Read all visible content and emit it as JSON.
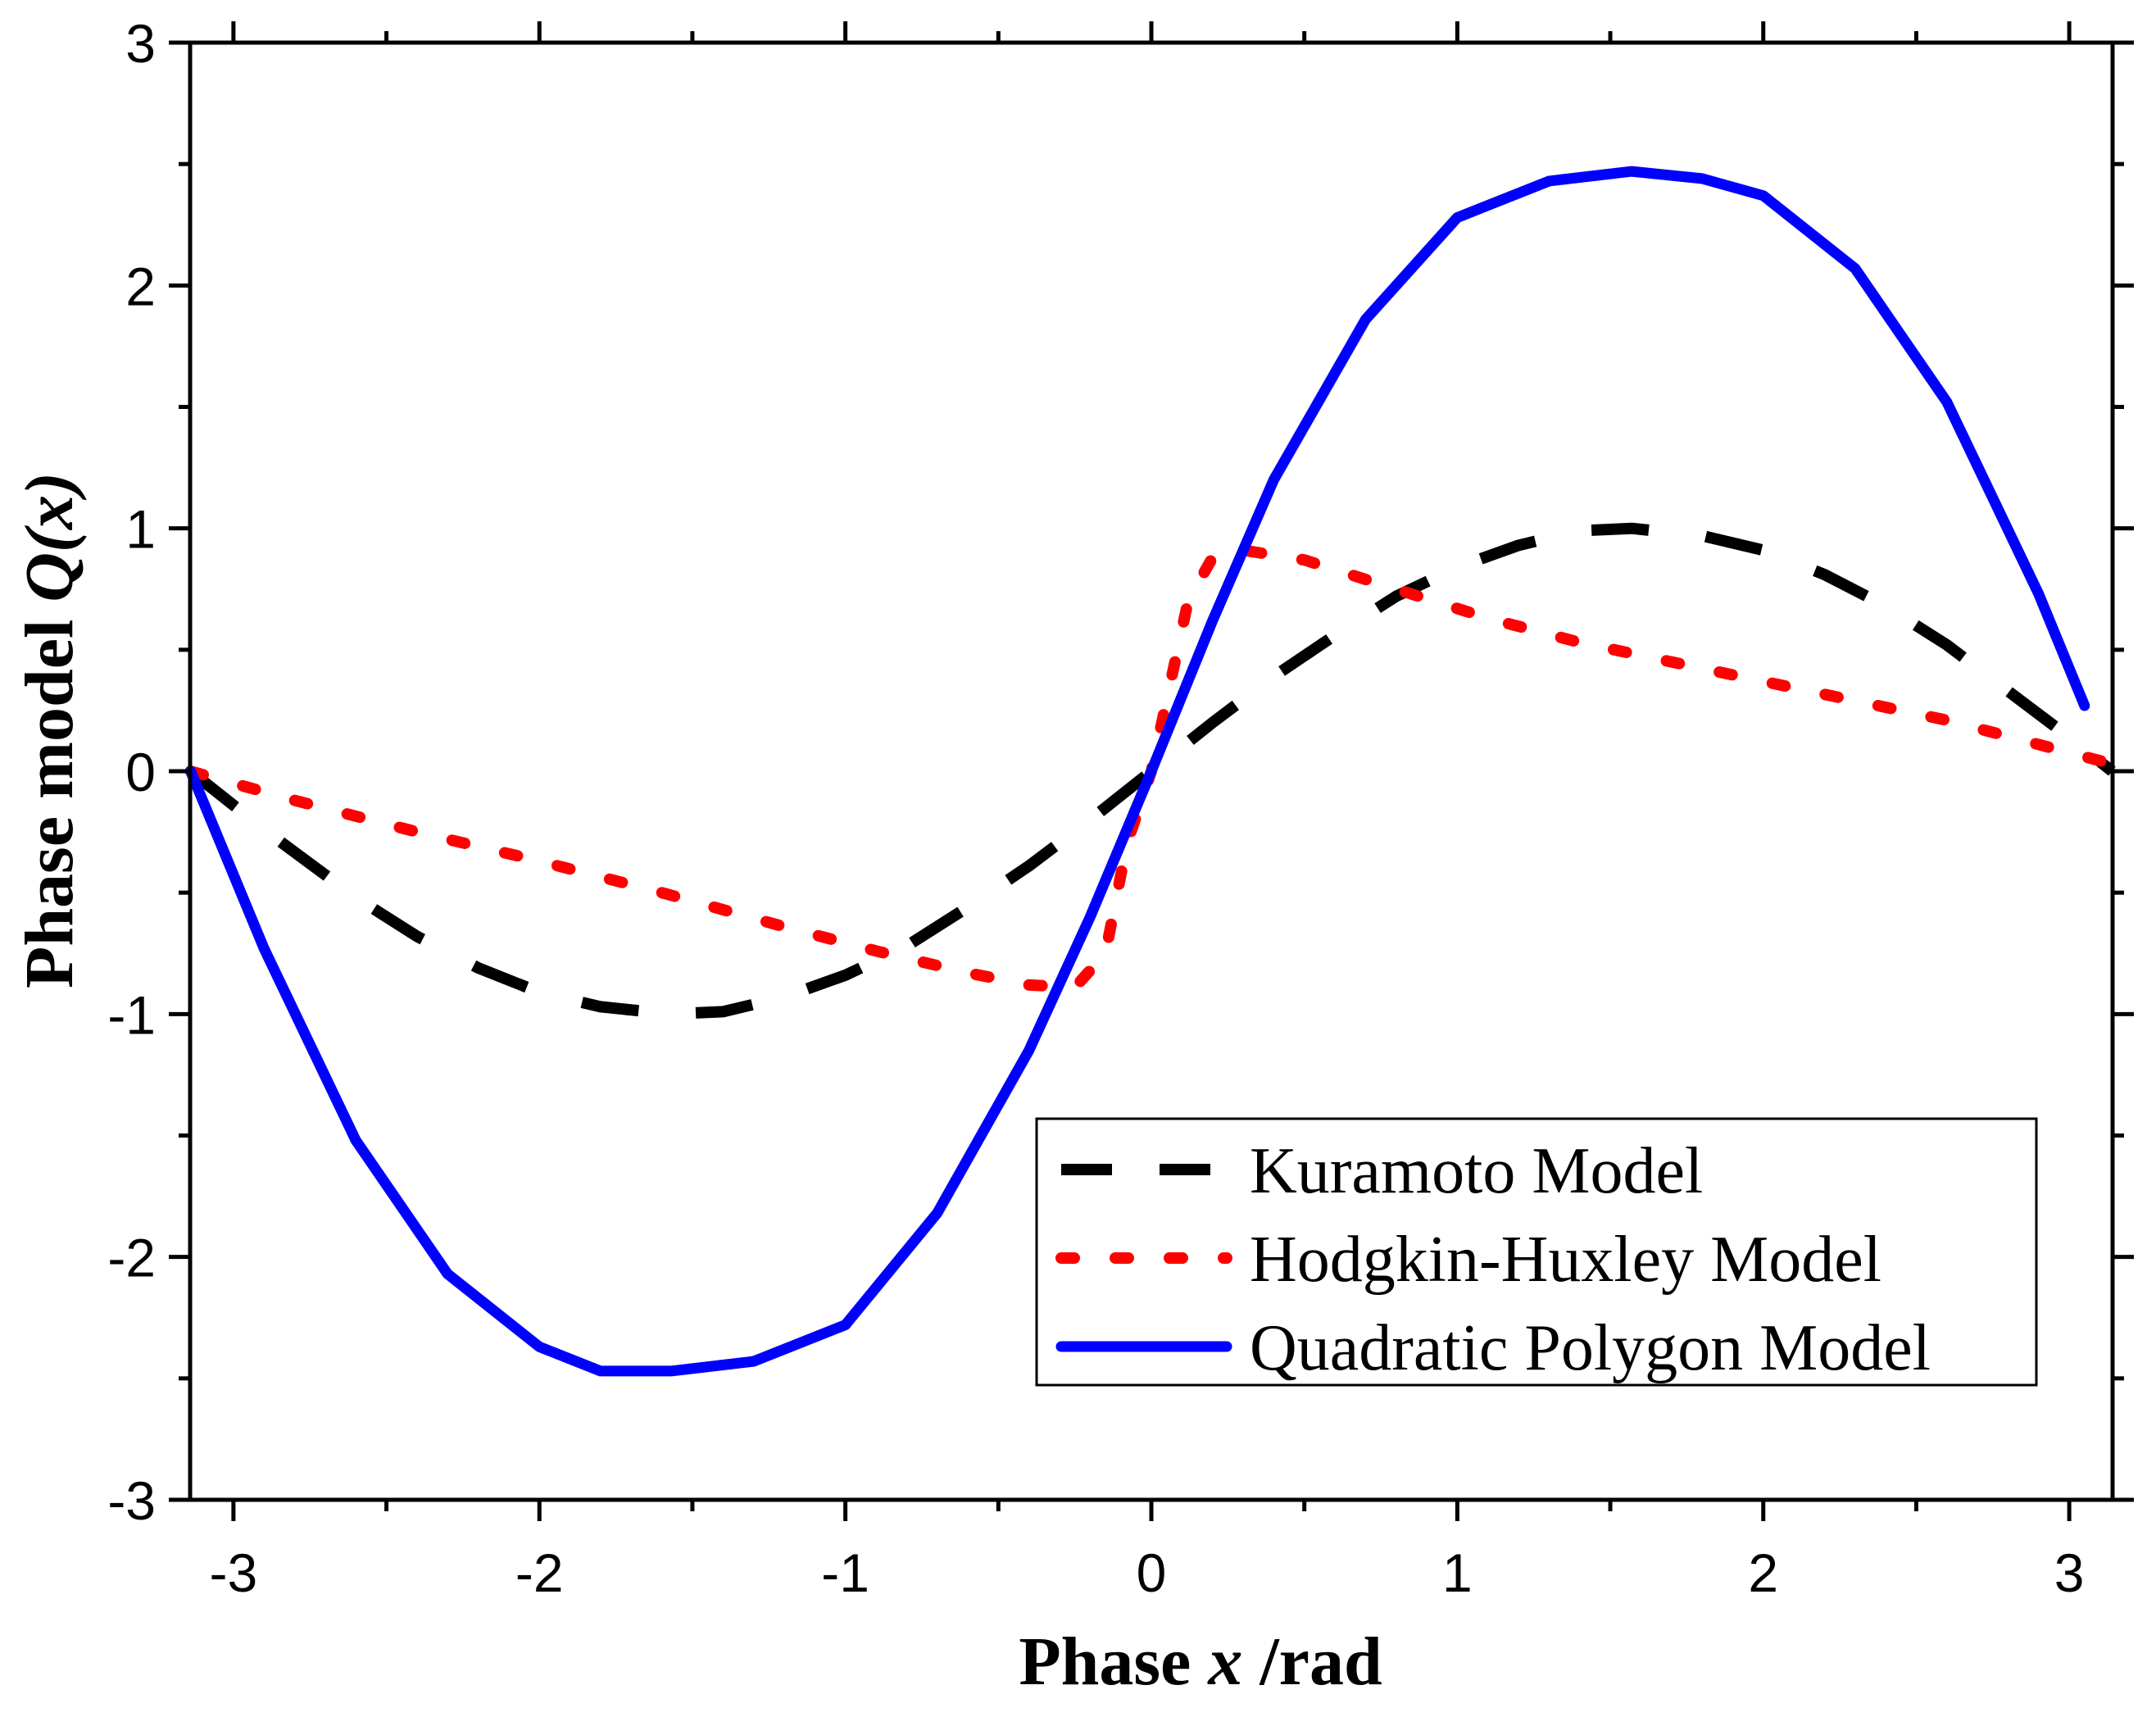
{
  "chart_data": {
    "type": "line",
    "xlabel": {
      "prefix": "Phase ",
      "var": "x",
      "suffix": " /rad"
    },
    "ylabel": {
      "prefix": "Phase model ",
      "var": "Q",
      "suffix": "(x)"
    },
    "xlim": [
      -3.14159,
      3.14159
    ],
    "ylim": [
      -3,
      3
    ],
    "x_ticks": [
      -3,
      -2,
      -1,
      0,
      1,
      2,
      3
    ],
    "x_tick_labels": [
      "-3",
      "-2",
      "-1",
      "0",
      "1",
      "2",
      "3"
    ],
    "y_ticks": [
      -3,
      -2,
      -1,
      0,
      1,
      2,
      3
    ],
    "y_tick_labels": [
      "-3",
      "-2",
      "-1",
      "0",
      "1",
      "2",
      "3"
    ],
    "grid": false,
    "legend_position": "bottom-right",
    "series": [
      {
        "name": "Kuramoto Model",
        "color": "#000000",
        "style": "dash",
        "x": [
          -3.14,
          -2.9,
          -2.6,
          -2.4,
          -2.2,
          -2.0,
          -1.8,
          -1.57,
          -1.4,
          -1.2,
          -1.0,
          -0.8,
          -0.6,
          -0.4,
          -0.2,
          0.0,
          0.2,
          0.4,
          0.6,
          0.8,
          1.0,
          1.2,
          1.4,
          1.57,
          1.8,
          2.0,
          2.2,
          2.4,
          2.6,
          2.8,
          3.0,
          3.14
        ],
        "y": [
          0.0,
          -0.24,
          -0.52,
          -0.68,
          -0.81,
          -0.91,
          -0.97,
          -1.0,
          -0.99,
          -0.93,
          -0.84,
          -0.72,
          -0.56,
          -0.39,
          -0.2,
          0.0,
          0.2,
          0.39,
          0.56,
          0.72,
          0.84,
          0.93,
          0.99,
          1.0,
          0.97,
          0.91,
          0.81,
          0.68,
          0.52,
          0.33,
          0.14,
          0.0
        ]
      },
      {
        "name": "Hodgkin-Huxley Model",
        "color": "#ff0000",
        "style": "dot",
        "x": [
          -3.14,
          -2.8,
          -2.4,
          -2.0,
          -1.6,
          -1.2,
          -0.9,
          -0.6,
          -0.4,
          -0.25,
          -0.15,
          -0.08,
          0.0,
          0.06,
          0.12,
          0.2,
          0.3,
          0.5,
          0.8,
          1.1,
          1.4,
          1.7,
          2.0,
          2.3,
          2.6,
          2.9,
          3.14
        ],
        "y": [
          0.0,
          -0.12,
          -0.25,
          -0.37,
          -0.5,
          -0.64,
          -0.74,
          -0.83,
          -0.88,
          -0.89,
          -0.75,
          -0.3,
          0.0,
          0.35,
          0.7,
          0.88,
          0.91,
          0.87,
          0.75,
          0.63,
          0.53,
          0.45,
          0.37,
          0.29,
          0.21,
          0.11,
          0.03
        ]
      },
      {
        "name": "Quadratic Polygon Model",
        "color": "#0000ff",
        "style": "solid",
        "x": [
          -3.14,
          -2.9,
          -2.6,
          -2.3,
          -2.0,
          -1.8,
          -1.57,
          -1.3,
          -1.0,
          -0.7,
          -0.4,
          -0.2,
          0.0,
          0.2,
          0.4,
          0.7,
          1.0,
          1.3,
          1.57,
          1.8,
          2.0,
          2.3,
          2.6,
          2.9,
          3.05
        ],
        "y": [
          0.0,
          -0.73,
          -1.52,
          -2.07,
          -2.37,
          -2.47,
          -2.47,
          -2.43,
          -2.28,
          -1.82,
          -1.15,
          -0.6,
          0.0,
          0.62,
          1.2,
          1.86,
          2.28,
          2.43,
          2.47,
          2.44,
          2.37,
          2.07,
          1.52,
          0.73,
          0.27
        ]
      }
    ]
  }
}
